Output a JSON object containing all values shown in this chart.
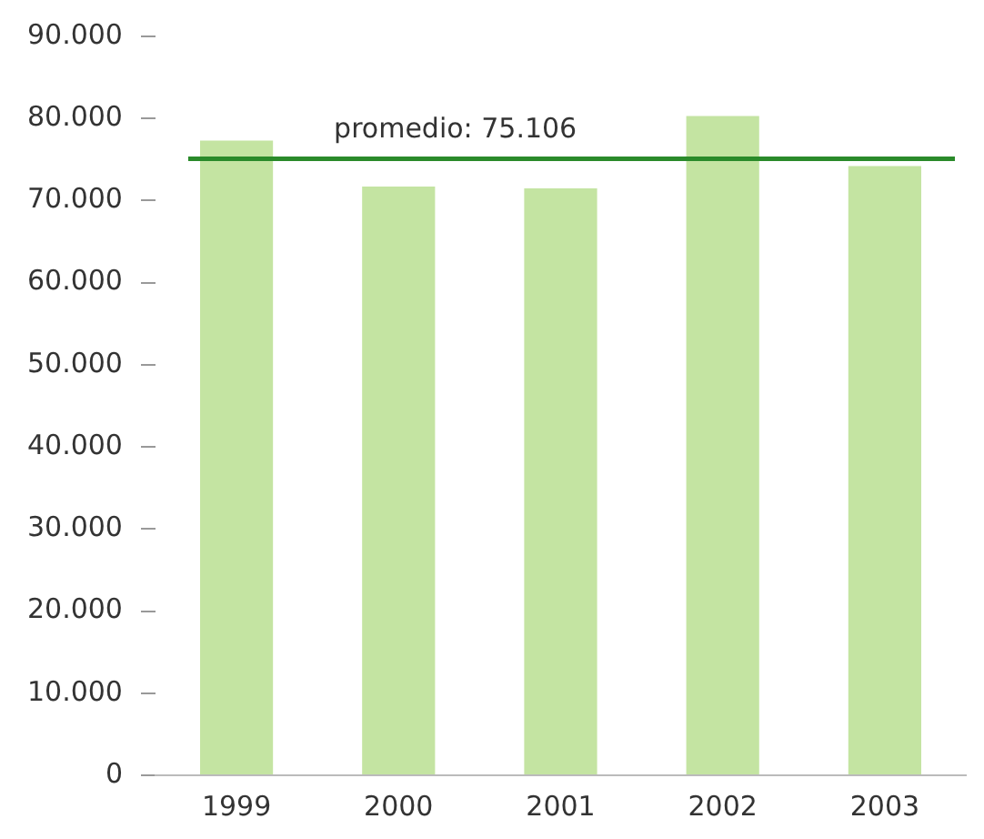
{
  "chart_data": {
    "type": "bar",
    "categories": [
      "1999",
      "2000",
      "2001",
      "2002",
      "2003"
    ],
    "values": [
      77300,
      71700,
      71500,
      80300,
      74200
    ],
    "color": "#c4e4a2",
    "ylim": [
      0,
      90000
    ],
    "yticks": [
      {
        "value": 0,
        "label": "0"
      },
      {
        "value": 10000,
        "label": "10.000"
      },
      {
        "value": 20000,
        "label": "20.000"
      },
      {
        "value": 30000,
        "label": "30.000"
      },
      {
        "value": 40000,
        "label": "40.000"
      },
      {
        "value": 50000,
        "label": "50.000"
      },
      {
        "value": 60000,
        "label": "60.000"
      },
      {
        "value": 70000,
        "label": "70.000"
      },
      {
        "value": 80000,
        "label": "80.000"
      },
      {
        "value": 90000,
        "label": "90.000"
      }
    ],
    "ref_lines": [
      {
        "axis": "y",
        "value": 75106,
        "label": "promedio: 75.106",
        "color": "#2a8a2a"
      }
    ],
    "grid": false,
    "legend": false
  }
}
